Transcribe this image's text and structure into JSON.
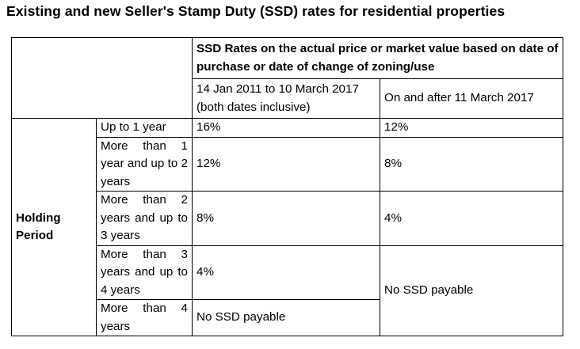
{
  "title": "Existing and new Seller's Stamp Duty (SSD) rates for residential properties",
  "table": {
    "header_main": "SSD Rates on the actual price or market value based on date of purchase or date of change of zoning/use",
    "col_existing": "14 Jan 2011 to 10 March 2017 (both dates inclusive)",
    "col_new": "On and after 11 March 2017",
    "holding_label_line1": "Holding",
    "holding_label_line2": "Period",
    "rows": [
      {
        "period": "Up to 1 year",
        "existing": "16%",
        "new": "12%"
      },
      {
        "period": "More than 1 year and up to 2 years",
        "existing": "12%",
        "new": "8%"
      },
      {
        "period": "More than 2 years and up to 3 years",
        "existing": "8%",
        "new": "4%"
      },
      {
        "period": "More than 3 years and up to 4 years",
        "existing": "4%"
      },
      {
        "period": "More than 4 years",
        "existing": "No SSD payable"
      }
    ],
    "new_merged": "No SSD payable"
  }
}
